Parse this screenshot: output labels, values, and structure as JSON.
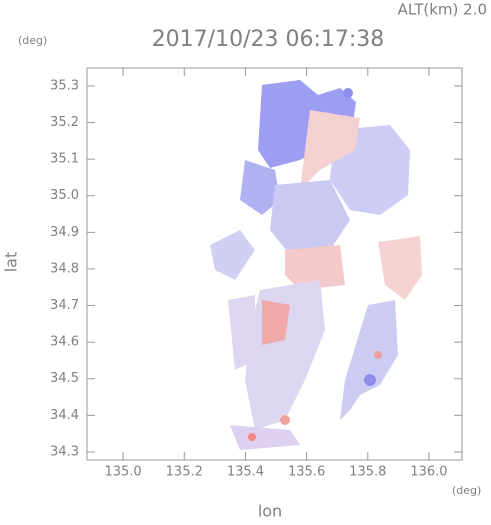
{
  "chart_data": {
    "type": "radar-image",
    "title": "2017/10/23 06:17:38",
    "annotation": "ALT(km) 2.0",
    "x_label": "lon",
    "x_unit": "(deg)",
    "y_label": "lat",
    "y_unit": "(deg)",
    "xlim": [
      134.882,
      136.108
    ],
    "ylim": [
      34.278,
      35.349
    ],
    "xticks": [
      {
        "value": 135.0,
        "label": "135.0"
      },
      135.2,
      135.4,
      135.6,
      135.8,
      {
        "value": 136.0,
        "label": "136.0"
      }
    ],
    "yticks": [
      35.3,
      35.2,
      35.1,
      {
        "value": 35.0,
        "label": "35.0"
      },
      34.9,
      34.8,
      34.7,
      34.6,
      34.5,
      34.4,
      34.3
    ]
  }
}
